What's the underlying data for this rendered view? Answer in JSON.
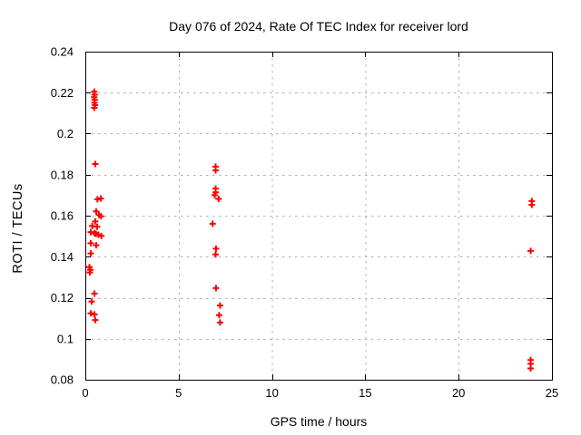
{
  "chart_data": {
    "type": "scatter",
    "title": "Day 076 of 2024, Rate Of TEC Index for receiver lord",
    "xlabel": "GPS time / hours",
    "ylabel": "ROTI / TECUs",
    "xlim": [
      0,
      25
    ],
    "ylim": [
      0.08,
      0.24
    ],
    "xticks": {
      "values": [
        0,
        5,
        10,
        15,
        20,
        25
      ],
      "labels": [
        "0",
        "5",
        "10",
        "15",
        "20",
        "25"
      ]
    },
    "yticks": {
      "values": [
        0.08,
        0.1,
        0.12,
        0.14,
        0.16,
        0.18,
        0.2,
        0.22,
        0.24
      ],
      "labels": [
        "0.08",
        "0.1",
        "0.12",
        "0.14",
        "0.16",
        "0.18",
        "0.2",
        "0.22",
        "0.24"
      ]
    },
    "grid": "dashed gray at every major tick",
    "legend": "none",
    "marker": {
      "shape": "plus",
      "color": "#ff0000",
      "size": 7
    },
    "colors": {
      "axis": "#000000",
      "grid": "#b0b0b0",
      "text": "#000000",
      "background": "#ffffff"
    },
    "series": [
      {
        "name": "ROTI",
        "points": [
          [
            0.48,
            0.2205
          ],
          [
            0.5,
            0.219
          ],
          [
            0.47,
            0.2178
          ],
          [
            0.5,
            0.2165
          ],
          [
            0.49,
            0.2151
          ],
          [
            0.52,
            0.2139
          ],
          [
            0.48,
            0.2126
          ],
          [
            0.53,
            0.1852
          ],
          [
            0.65,
            0.168
          ],
          [
            0.83,
            0.1684
          ],
          [
            0.58,
            0.1621
          ],
          [
            0.73,
            0.1604
          ],
          [
            0.84,
            0.1597
          ],
          [
            0.53,
            0.1572
          ],
          [
            0.37,
            0.155
          ],
          [
            0.63,
            0.1546
          ],
          [
            0.29,
            0.152
          ],
          [
            0.49,
            0.1515
          ],
          [
            0.57,
            0.1511
          ],
          [
            0.7,
            0.1507
          ],
          [
            0.86,
            0.1501
          ],
          [
            0.29,
            0.1466
          ],
          [
            0.58,
            0.1456
          ],
          [
            0.29,
            0.1416
          ],
          [
            0.22,
            0.1349
          ],
          [
            0.27,
            0.1336
          ],
          [
            0.24,
            0.1323
          ],
          [
            0.49,
            0.122
          ],
          [
            0.34,
            0.1181
          ],
          [
            0.29,
            0.1124
          ],
          [
            0.49,
            0.1119
          ],
          [
            0.53,
            0.1091
          ],
          [
            6.98,
            0.1839
          ],
          [
            6.98,
            0.1821
          ],
          [
            6.98,
            0.1732
          ],
          [
            6.98,
            0.1714
          ],
          [
            6.93,
            0.17
          ],
          [
            7.14,
            0.1682
          ],
          [
            6.82,
            0.1561
          ],
          [
            7.0,
            0.1439
          ],
          [
            6.98,
            0.1411
          ],
          [
            7.0,
            0.1247
          ],
          [
            7.22,
            0.1162
          ],
          [
            7.17,
            0.1115
          ],
          [
            7.22,
            0.1079
          ],
          [
            23.92,
            0.1671
          ],
          [
            23.92,
            0.1653
          ],
          [
            23.86,
            0.1428
          ],
          [
            23.86,
            0.0896
          ],
          [
            23.86,
            0.0878
          ],
          [
            23.86,
            0.0855
          ]
        ]
      }
    ]
  }
}
